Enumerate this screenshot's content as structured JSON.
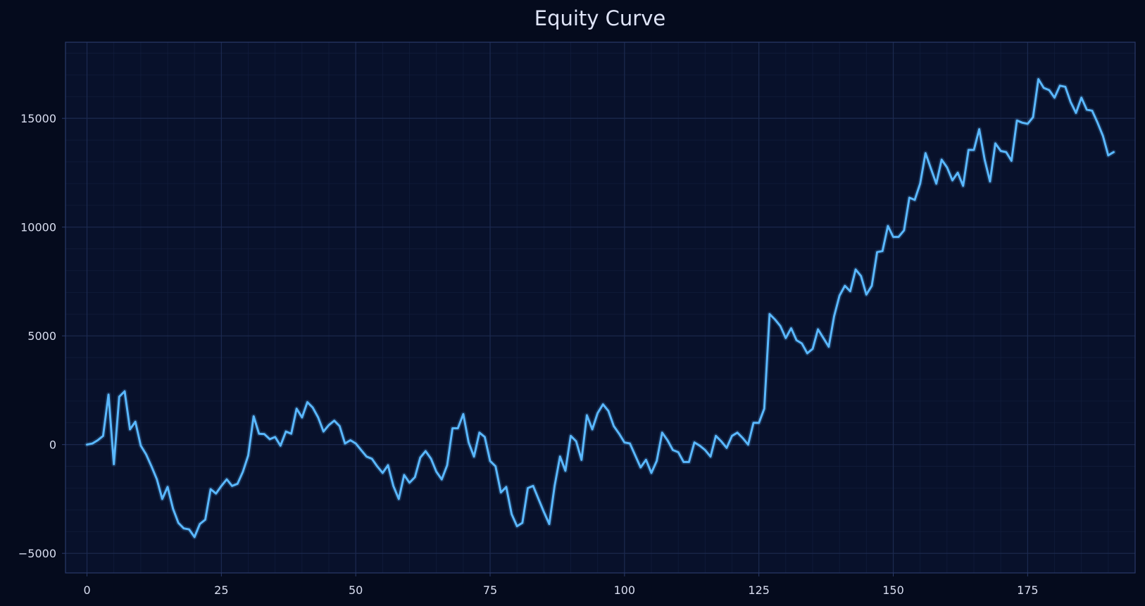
{
  "chart_data": {
    "type": "line",
    "title": "Equity Curve",
    "xlabel": "",
    "ylabel": "",
    "xlim": [
      -4,
      195
    ],
    "ylim": [
      -5900,
      18500
    ],
    "x_ticks": [
      0,
      25,
      50,
      75,
      100,
      125,
      150,
      175
    ],
    "y_ticks": [
      -5000,
      0,
      5000,
      10000,
      15000
    ],
    "x_tick_labels": [
      "0",
      "25",
      "50",
      "75",
      "100",
      "125",
      "150",
      "175"
    ],
    "y_tick_labels": [
      "−5000",
      "0",
      "5000",
      "10000",
      "15000"
    ],
    "grid": true,
    "minor_grid": true,
    "legend": "none",
    "colors": {
      "background": "#050b1d",
      "plot_background": "#08112b",
      "line": "#5ab8ff",
      "grid_major": "#1c2a50",
      "grid_minor": "#111c3b",
      "frame": "#2a3a6a"
    },
    "series": [
      {
        "x_start": 0,
        "values": [
          0,
          50,
          200,
          400,
          2300,
          -900,
          2200,
          2450,
          700,
          1050,
          -50,
          -450,
          -1000,
          -1600,
          -2500,
          -1950,
          -2950,
          -3600,
          -3850,
          -3900,
          -4250,
          -3650,
          -3450,
          -2050,
          -2250,
          -1900,
          -1600,
          -1900,
          -1800,
          -1250,
          -500,
          1300,
          500,
          480,
          250,
          350,
          -50,
          600,
          500,
          1650,
          1250,
          1950,
          1700,
          1250,
          600,
          900,
          1100,
          850,
          50,
          200,
          50,
          -250,
          -550,
          -650,
          -1000,
          -1300,
          -950,
          -1900,
          -2500,
          -1400,
          -1750,
          -1500,
          -600,
          -300,
          -650,
          -1250,
          -1600,
          -950,
          750,
          750,
          1400,
          100,
          -550,
          550,
          350,
          -750,
          -1000,
          -2200,
          -1950,
          -3200,
          -3750,
          -3600,
          -2000,
          -1900,
          -2500,
          -3100,
          -3650,
          -1900,
          -550,
          -1200,
          400,
          150,
          -700,
          1350,
          700,
          1450,
          1850,
          1550,
          850,
          500,
          100,
          50,
          -500,
          -1050,
          -700,
          -1300,
          -750,
          550,
          200,
          -250,
          -350,
          -800,
          -800,
          100,
          -50,
          -250,
          -550,
          400,
          150,
          -150,
          400,
          550,
          300,
          0,
          1000,
          1000,
          1650,
          6000,
          5750,
          5450,
          4900,
          5350,
          4800,
          4650,
          4200,
          4400,
          5300,
          4900,
          4500,
          5900,
          6850,
          7300,
          7050,
          8050,
          7750,
          6900,
          7300,
          8850,
          8900,
          10050,
          9550,
          9550,
          9850,
          11350,
          11250,
          12000,
          13400,
          12700,
          12000,
          13100,
          12750,
          12150,
          12500,
          11900,
          13550,
          13550,
          14500,
          13100,
          12100,
          13850,
          13500,
          13450,
          13050,
          14900,
          14800,
          14750,
          15050,
          16800,
          16400,
          16300,
          15950,
          16500,
          16450,
          15750,
          15250,
          15950,
          15400,
          15350,
          14800,
          14200,
          13300,
          13450
        ]
      }
    ]
  }
}
